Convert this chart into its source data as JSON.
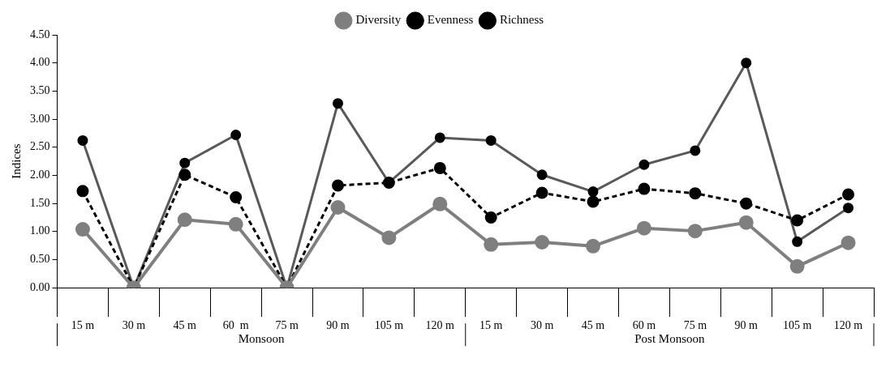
{
  "chart_data": {
    "type": "line",
    "ylabel": "Indices",
    "categories": [
      "15 m",
      "30 m",
      "45 m",
      "60  m",
      "75 m",
      "90 m",
      "105 m",
      "120 m",
      "15 m",
      "30 m",
      "45 m",
      "60 m",
      "75 m",
      "90 m",
      "105 m",
      "120 m"
    ],
    "series": [
      {
        "name": "Diversity",
        "color": "#7f7f7f",
        "line_style": "solid",
        "values": [
          1.04,
          0,
          1.21,
          1.13,
          0,
          1.43,
          0.89,
          1.49,
          0.77,
          0.81,
          0.74,
          1.06,
          1.01,
          1.16,
          0.38,
          0.8
        ]
      },
      {
        "name": "Evenness",
        "color": "#000000",
        "line_style": "dashed",
        "values": [
          1.72,
          0,
          2.01,
          1.61,
          0,
          1.82,
          1.87,
          2.13,
          1.25,
          1.69,
          1.53,
          1.76,
          1.68,
          1.5,
          1.2,
          1.66
        ]
      },
      {
        "name": "Richness",
        "color": "#595959",
        "line_style": "solid",
        "values": [
          2.62,
          0,
          2.22,
          2.72,
          0,
          3.28,
          1.87,
          2.67,
          2.62,
          2.01,
          1.71,
          2.19,
          2.44,
          4.0,
          0.82,
          1.42
        ]
      }
    ],
    "ylim": [
      0,
      4.5
    ],
    "yticks": [
      {
        "value": 0,
        "label": "0.00"
      },
      {
        "value": 0.5,
        "label": "0.50"
      },
      {
        "value": 1,
        "label": "1.00"
      },
      {
        "value": 1.5,
        "label": "1.50"
      },
      {
        "value": 2,
        "label": "2.00"
      },
      {
        "value": 2.5,
        "label": "2.50"
      },
      {
        "value": 3,
        "label": "3.00"
      },
      {
        "value": 3.5,
        "label": "3.50"
      },
      {
        "value": 4,
        "label": "4.00"
      },
      {
        "value": 4.5,
        "label": "4.50"
      }
    ],
    "annotations": [
      "Monsoon",
      "Post Monsoon"
    ],
    "grid": false,
    "legend": "top",
    "marker": "circle"
  }
}
